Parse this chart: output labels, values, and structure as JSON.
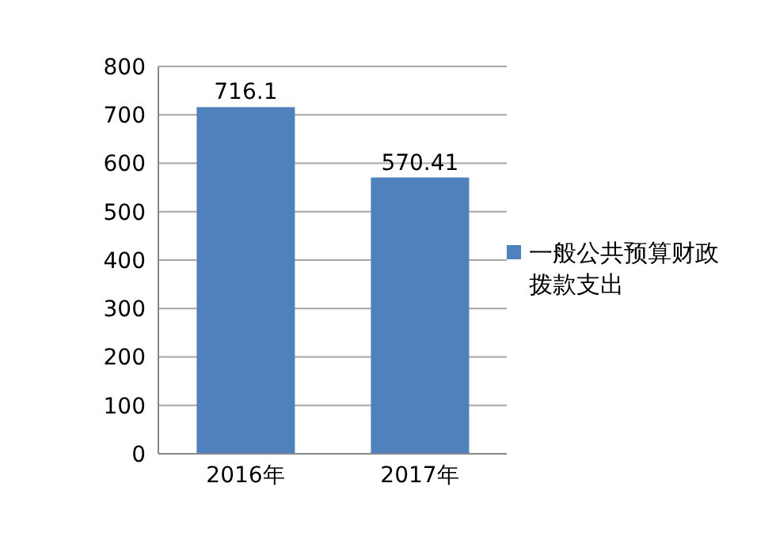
{
  "chart_data": {
    "type": "bar",
    "categories": [
      "2016年",
      "2017年"
    ],
    "series": [
      {
        "name": "一般公共预算财政拨款支出",
        "color": "#4f81bd",
        "values": [
          716.1,
          570.41
        ]
      }
    ],
    "ylim": [
      0,
      800
    ],
    "yticks": [
      0,
      100,
      200,
      300,
      400,
      500,
      600,
      700,
      800
    ],
    "grid": "y",
    "legend": "right",
    "data_labels": true
  }
}
